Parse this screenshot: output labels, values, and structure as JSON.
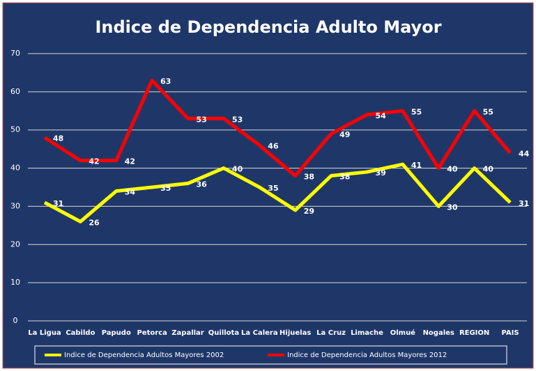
{
  "chart_data": {
    "type": "line",
    "title": "Indice de Dependencia Adulto Mayor",
    "categories": [
      "La Ligua",
      "Cabildo",
      "Papudo",
      "Petorca",
      "Zapallar",
      "Quillota",
      "La Calera",
      "Hijuelas",
      "La Cruz",
      "Limache",
      "Olmué",
      "Nogales",
      "REGION",
      "PAIS"
    ],
    "series": [
      {
        "name": "Indice de Dependencia Adultos Mayores 2002",
        "color": "#ffff00",
        "values": [
          31,
          26,
          34,
          35,
          36,
          40,
          35,
          29,
          38,
          39,
          41,
          30,
          40,
          31
        ]
      },
      {
        "name": "Indice de Dependencia Adultos Mayores 2012",
        "color": "#ff0000",
        "values": [
          48,
          42,
          42,
          63,
          53,
          53,
          46,
          38,
          49,
          54,
          55,
          40,
          55,
          44
        ]
      }
    ],
    "ylim": [
      0,
      70
    ],
    "yticks": [
      0,
      10,
      20,
      30,
      40,
      50,
      60,
      70
    ],
    "grid": true,
    "legend": "bottom"
  }
}
